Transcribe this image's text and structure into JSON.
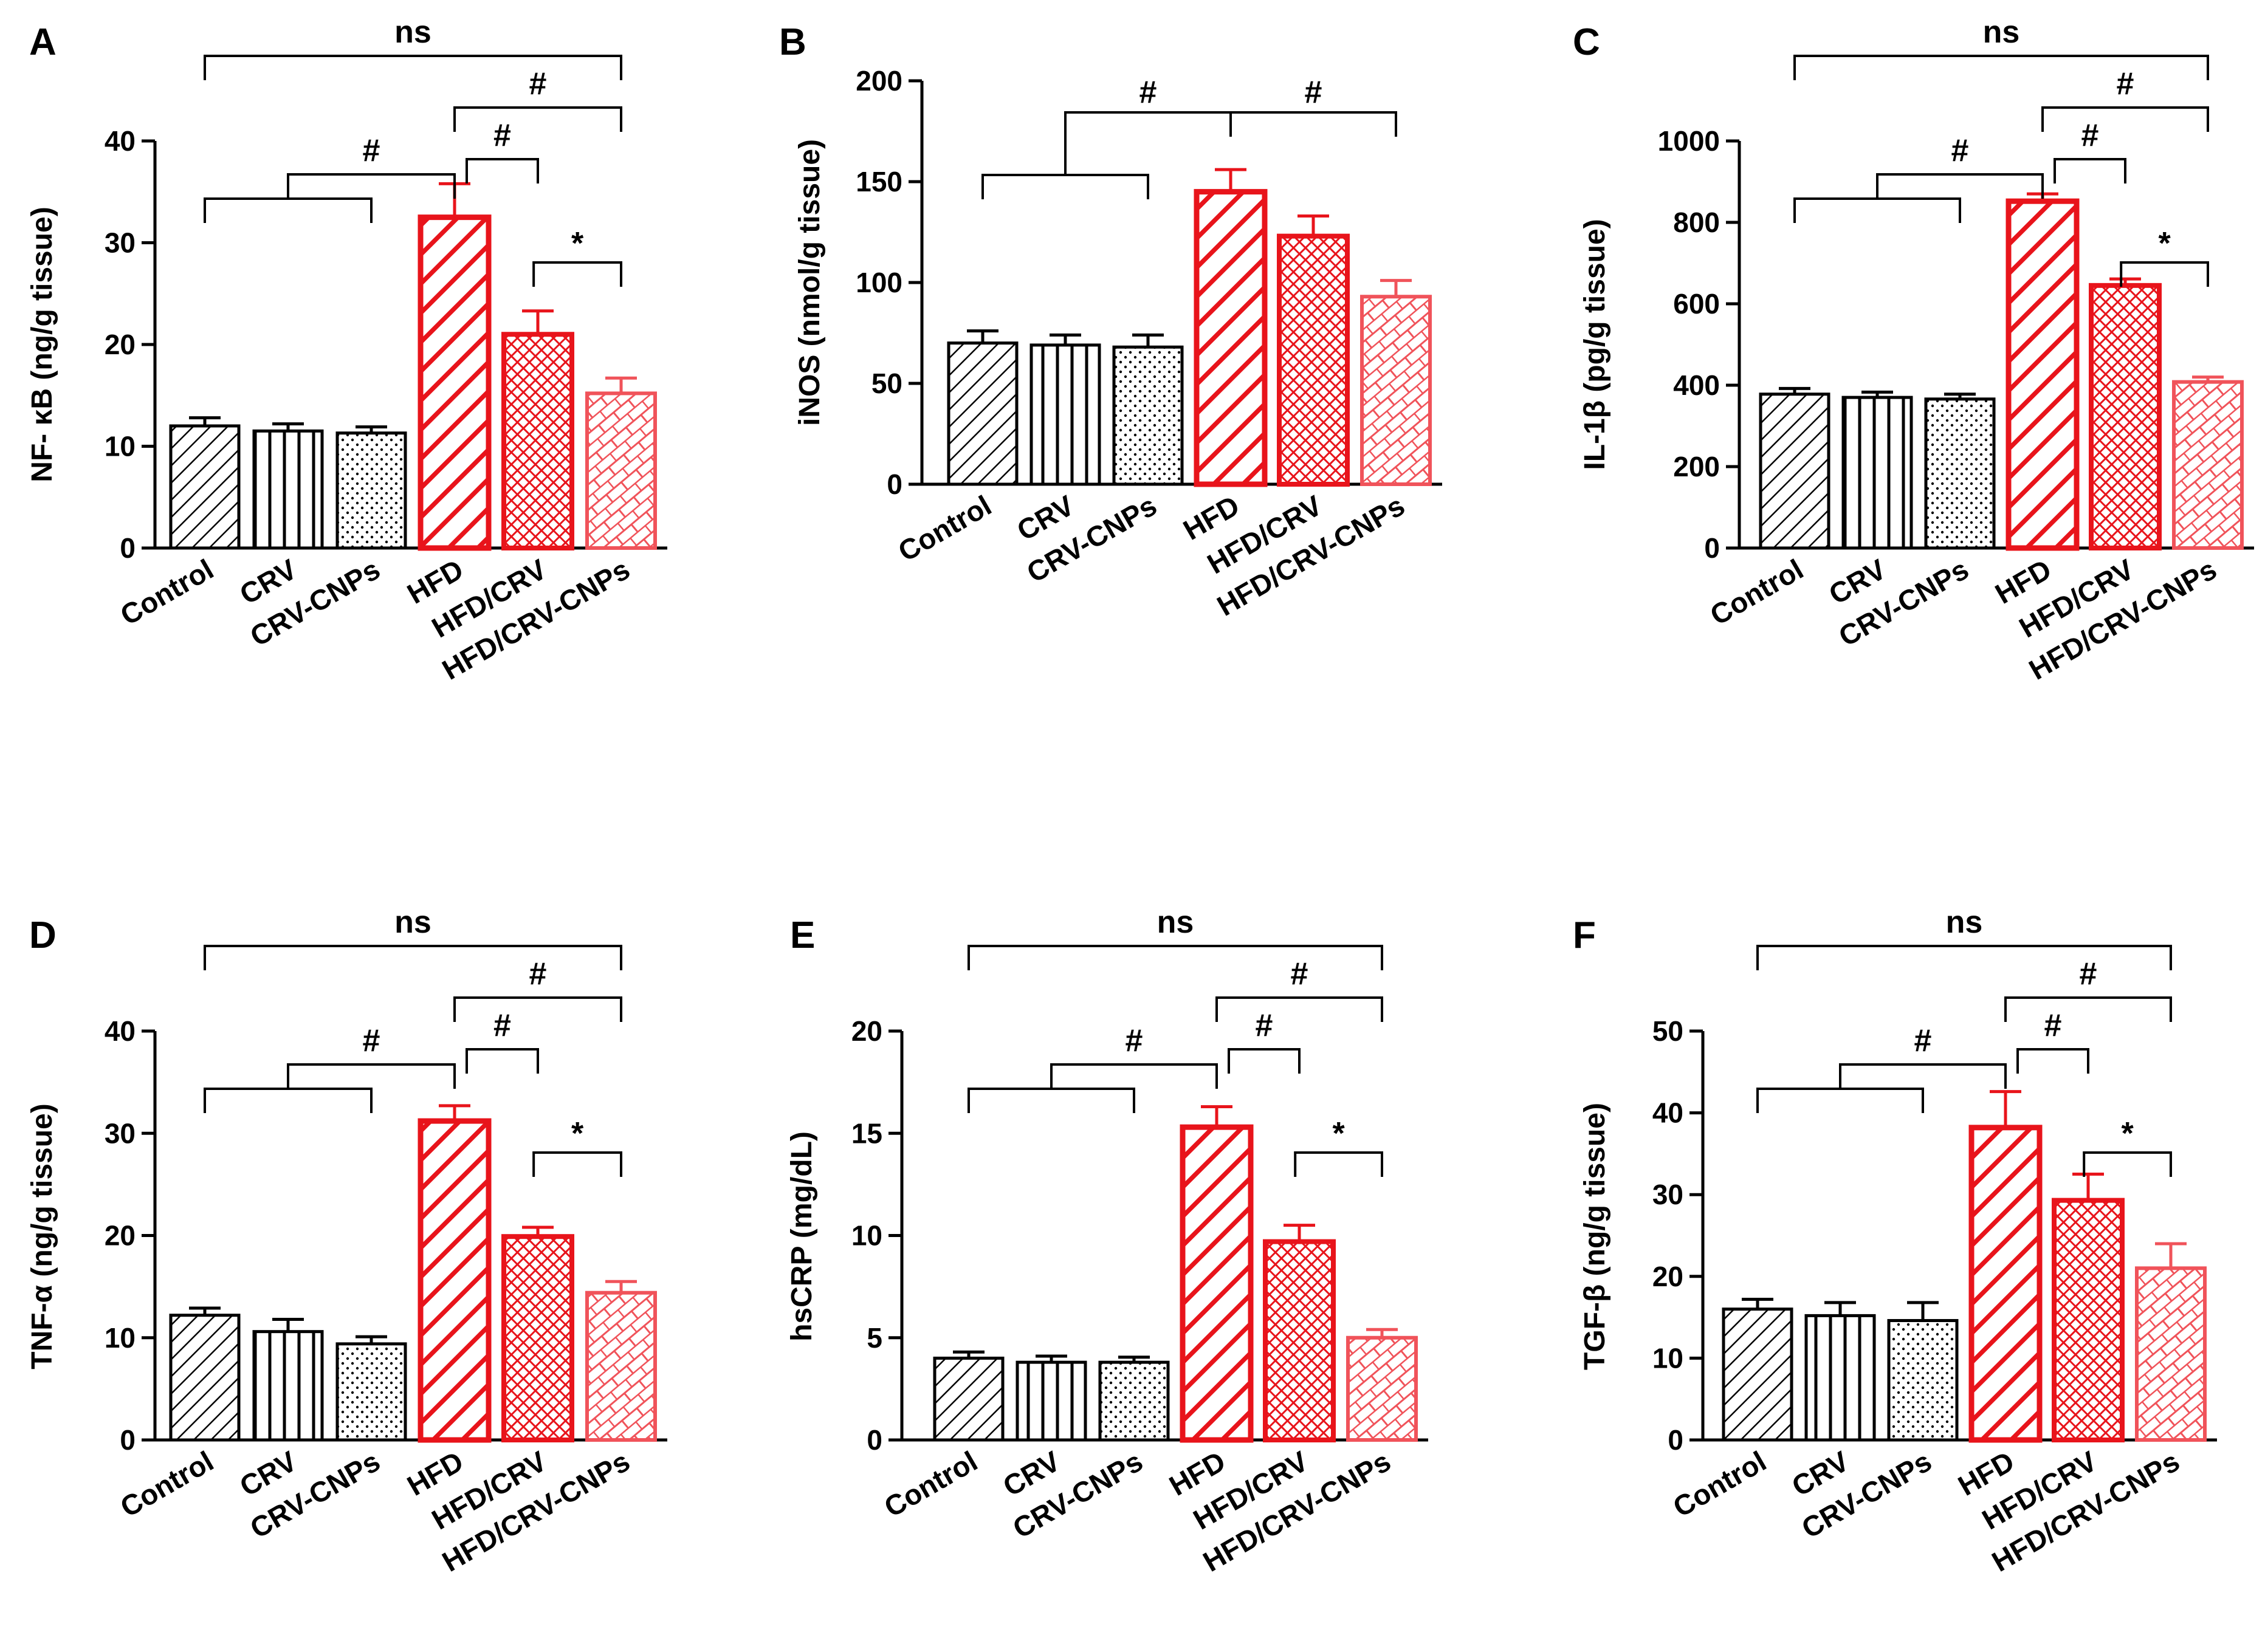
{
  "figure": {
    "colors": {
      "black": "#000000",
      "red": "#e8141b",
      "red_light": "#f0535a"
    },
    "groups": [
      "Control",
      "CRV",
      "CRV-CNPs",
      "HFD",
      "HFD/CRV",
      "HFD/CRV-CNPs"
    ],
    "bar_patterns": [
      "diagonal-thin",
      "vertical-lines",
      "dots",
      "diagonal-thick",
      "crosshatch",
      "brick"
    ]
  },
  "chart_data": [
    {
      "type": "bar",
      "panel": "A",
      "ylabel": "NF- κB (ng/g tissue)",
      "categories": [
        "Control",
        "CRV",
        "CRV-CNPs",
        "HFD",
        "HFD/CRV",
        "HFD/CRV-CNPs"
      ],
      "values": [
        12,
        11.5,
        11.3,
        32.5,
        21,
        15.2
      ],
      "errors": [
        0.8,
        0.7,
        0.6,
        3.3,
        2.3,
        1.5
      ],
      "ylim": [
        0,
        40
      ],
      "yticks": [
        "0",
        "10",
        "20",
        "30",
        "40"
      ],
      "significance": [
        {
          "label": "ns",
          "from": 0,
          "to": 5
        },
        {
          "label": "#",
          "from": 3,
          "to": 5
        },
        {
          "label": "#",
          "from": [
            0,
            2
          ],
          "to": 3
        },
        {
          "label": "#",
          "from": 3,
          "to": 4
        },
        {
          "label": "*",
          "from": 4,
          "to": 5
        }
      ]
    },
    {
      "type": "bar",
      "panel": "B",
      "ylabel": "iNOS (nmol/g tissue)",
      "categories": [
        "Control",
        "CRV",
        "CRV-CNPs",
        "HFD",
        "HFD/CRV",
        "HFD/CRV-CNPs"
      ],
      "values": [
        70,
        69,
        68,
        145,
        123,
        93
      ],
      "errors": [
        6,
        5,
        6,
        11,
        10,
        8
      ],
      "ylim": [
        0,
        200
      ],
      "yticks": [
        "0",
        "50",
        "100",
        "150",
        "200"
      ],
      "significance": [
        {
          "label": "#",
          "from": [
            0,
            2
          ],
          "to": 3
        },
        {
          "label": "#",
          "from": 3,
          "to": 5
        }
      ]
    },
    {
      "type": "bar",
      "panel": "C",
      "ylabel": "IL-1β (pg/g tissue)",
      "categories": [
        "Control",
        "CRV",
        "CRV-CNPs",
        "HFD",
        "HFD/CRV",
        "HFD/CRV-CNPs"
      ],
      "values": [
        378,
        370,
        366,
        852,
        645,
        408
      ],
      "errors": [
        14,
        13,
        12,
        18,
        16,
        12
      ],
      "ylim": [
        0,
        1000
      ],
      "yticks": [
        "0",
        "200",
        "400",
        "600",
        "800",
        "1000"
      ],
      "significance": [
        {
          "label": "ns",
          "from": 0,
          "to": 5
        },
        {
          "label": "#",
          "from": 3,
          "to": 5
        },
        {
          "label": "#",
          "from": [
            0,
            2
          ],
          "to": 3
        },
        {
          "label": "#",
          "from": 3,
          "to": 4
        },
        {
          "label": "*",
          "from": 4,
          "to": 5
        }
      ]
    },
    {
      "type": "bar",
      "panel": "D",
      "ylabel": "TNF-α (ng/g tissue)",
      "categories": [
        "Control",
        "CRV",
        "CRV-CNPs",
        "HFD",
        "HFD/CRV",
        "HFD/CRV-CNPs"
      ],
      "values": [
        12.2,
        10.6,
        9.4,
        31.2,
        19.9,
        14.4
      ],
      "errors": [
        0.7,
        1.2,
        0.7,
        1.5,
        0.9,
        1.1
      ],
      "ylim": [
        0,
        40
      ],
      "yticks": [
        "0",
        "10",
        "20",
        "30",
        "40"
      ],
      "significance": [
        {
          "label": "ns",
          "from": 0,
          "to": 5
        },
        {
          "label": "#",
          "from": 3,
          "to": 5
        },
        {
          "label": "#",
          "from": [
            0,
            2
          ],
          "to": 3
        },
        {
          "label": "#",
          "from": 3,
          "to": 4
        },
        {
          "label": "*",
          "from": 4,
          "to": 5
        }
      ]
    },
    {
      "type": "bar",
      "panel": "E",
      "ylabel": "hsCRP (mg/dL)",
      "categories": [
        "Control",
        "CRV",
        "CRV-CNPs",
        "HFD",
        "HFD/CRV",
        "HFD/CRV-CNPs"
      ],
      "values": [
        4.0,
        3.8,
        3.8,
        15.3,
        9.7,
        5.0
      ],
      "errors": [
        0.3,
        0.3,
        0.25,
        1.0,
        0.8,
        0.4
      ],
      "ylim": [
        0,
        20
      ],
      "yticks": [
        "0",
        "5",
        "10",
        "15",
        "20"
      ],
      "significance": [
        {
          "label": "ns",
          "from": 0,
          "to": 5
        },
        {
          "label": "#",
          "from": 3,
          "to": 5
        },
        {
          "label": "#",
          "from": [
            0,
            2
          ],
          "to": 3
        },
        {
          "label": "#",
          "from": 3,
          "to": 4
        },
        {
          "label": "*",
          "from": 4,
          "to": 5
        }
      ]
    },
    {
      "type": "bar",
      "panel": "F",
      "ylabel": "TGF-β (ng/g tissue)",
      "categories": [
        "Control",
        "CRV",
        "CRV-CNPs",
        "HFD",
        "HFD/CRV",
        "HFD/CRV-CNPs"
      ],
      "values": [
        16,
        15.2,
        14.6,
        38.2,
        29.3,
        21
      ],
      "errors": [
        1.2,
        1.6,
        2.2,
        4.4,
        3.2,
        3.0
      ],
      "ylim": [
        0,
        50
      ],
      "yticks": [
        "0",
        "10",
        "20",
        "30",
        "40",
        "50"
      ],
      "significance": [
        {
          "label": "ns",
          "from": 0,
          "to": 5
        },
        {
          "label": "#",
          "from": 3,
          "to": 5
        },
        {
          "label": "#",
          "from": [
            0,
            2
          ],
          "to": 3
        },
        {
          "label": "#",
          "from": 3,
          "to": 4
        },
        {
          "label": "*",
          "from": 4,
          "to": 5
        }
      ]
    }
  ]
}
